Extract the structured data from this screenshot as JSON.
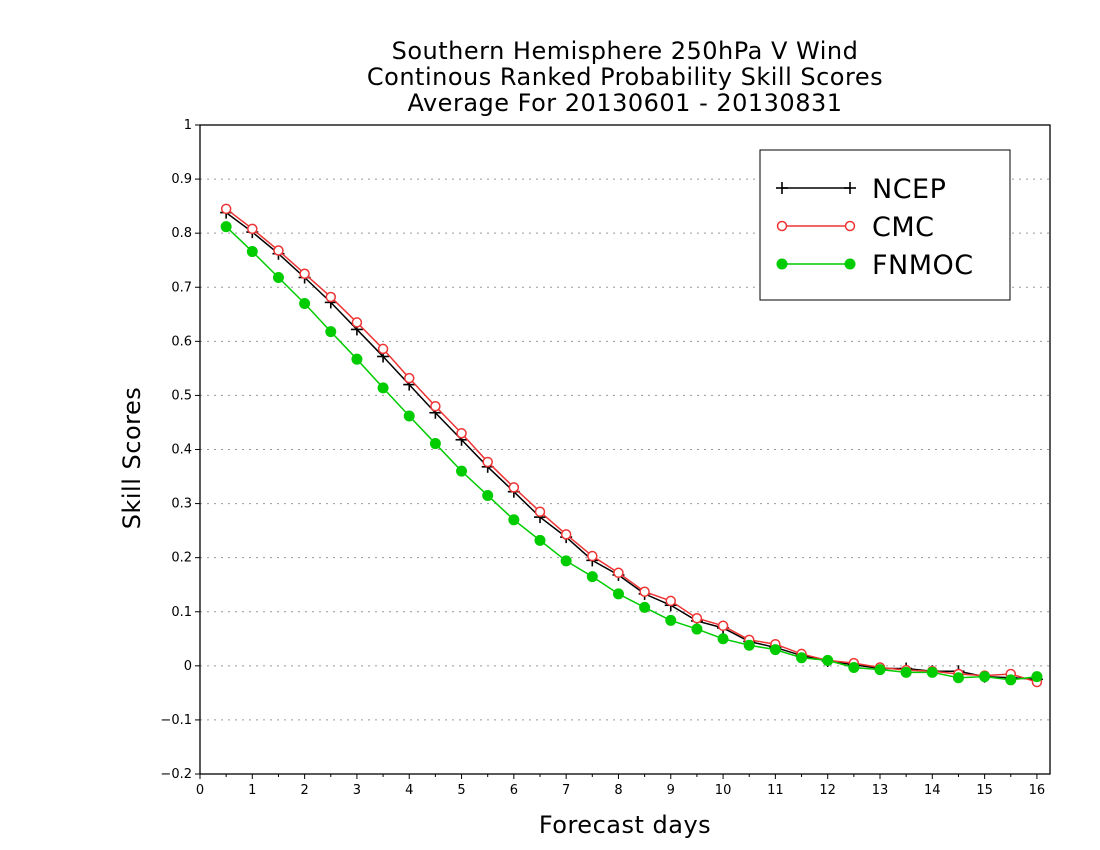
{
  "chart_data": {
    "type": "line",
    "title": [
      "Southern Hemisphere 250hPa V Wind",
      "Continous Ranked Probability Skill Scores",
      "Average For 20130601 - 20130831"
    ],
    "xlabel": "Forecast days",
    "ylabel": "Skill Scores",
    "xlim": [
      0,
      16.25
    ],
    "ylim": [
      -0.2,
      1
    ],
    "x_ticks": [
      "0",
      "1",
      "2",
      "3",
      "4",
      "5",
      "6",
      "7",
      "8",
      "9",
      "10",
      "11",
      "12",
      "13",
      "14",
      "15",
      "16"
    ],
    "y_ticks": [
      "−0.2",
      "−0.1",
      "0",
      "0.1",
      "0.2",
      "0.3",
      "0.4",
      "0.5",
      "0.6",
      "0.7",
      "0.8",
      "0.9",
      "1"
    ],
    "grid": "horizontal dotted",
    "legend_position": "top-right",
    "x": [
      0.5,
      1,
      1.5,
      2,
      2.5,
      3,
      3.5,
      4,
      4.5,
      5,
      5.5,
      6,
      6.5,
      7,
      7.5,
      8,
      8.5,
      9,
      9.5,
      10,
      10.5,
      11,
      11.5,
      12,
      12.5,
      13,
      13.5,
      14,
      14.5,
      15,
      15.5,
      16
    ],
    "series": [
      {
        "name": "NCEP",
        "color": "#000000",
        "marker": "plus",
        "values": [
          0.838,
          0.802,
          0.762,
          0.718,
          0.672,
          0.622,
          0.572,
          0.52,
          0.468,
          0.418,
          0.368,
          0.322,
          0.275,
          0.238,
          0.195,
          0.168,
          0.133,
          0.112,
          0.083,
          0.07,
          0.045,
          0.034,
          0.019,
          0.009,
          0.002,
          -0.005,
          -0.005,
          -0.01,
          -0.01,
          -0.02,
          -0.022,
          -0.025
        ]
      },
      {
        "name": "CMC",
        "color": "#ee3333",
        "marker": "open-circle",
        "values": [
          0.845,
          0.808,
          0.768,
          0.725,
          0.682,
          0.635,
          0.586,
          0.532,
          0.48,
          0.43,
          0.377,
          0.33,
          0.285,
          0.243,
          0.203,
          0.172,
          0.137,
          0.12,
          0.088,
          0.074,
          0.048,
          0.04,
          0.022,
          0.01,
          0.005,
          -0.003,
          -0.008,
          -0.01,
          -0.015,
          -0.018,
          -0.015,
          -0.03
        ]
      },
      {
        "name": "FNMOC",
        "color": "#00cc00",
        "marker": "filled-circle",
        "values": [
          0.812,
          0.766,
          0.718,
          0.67,
          0.618,
          0.567,
          0.514,
          0.462,
          0.411,
          0.36,
          0.315,
          0.27,
          0.232,
          0.194,
          0.165,
          0.133,
          0.108,
          0.084,
          0.068,
          0.05,
          0.038,
          0.03,
          0.015,
          0.01,
          -0.003,
          -0.007,
          -0.012,
          -0.012,
          -0.022,
          -0.02,
          -0.026,
          -0.02
        ]
      }
    ]
  }
}
